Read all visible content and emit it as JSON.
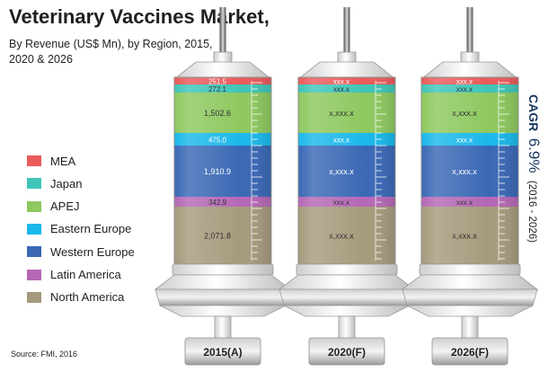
{
  "title": "Veterinary Vaccines Market,",
  "subtitle": "By Revenue (US$ Mn), by Region, 2015, 2020 & 2026",
  "source": "Source: FMI, 2016",
  "cagr": {
    "prefix": "CAGR",
    "value": "6.9%",
    "period": "(2016 - 2026)",
    "color": "#17365d"
  },
  "chart_data": {
    "type": "bar",
    "stacked": true,
    "categories": [
      "2015(A)",
      "2020(F)",
      "2026(F)"
    ],
    "series": [
      {
        "name": "North America",
        "color": "#a69a7c",
        "values": [
          2071.8,
          null,
          null
        ],
        "labels": [
          "2,071.8",
          "x,xxx.x",
          "x,xxx.x"
        ]
      },
      {
        "name": "Latin America",
        "color": "#b567b5",
        "values": [
          342.9,
          null,
          null
        ],
        "labels": [
          "342.9",
          "xxx.x",
          "xxx.x"
        ]
      },
      {
        "name": "Western Europe",
        "color": "#3a68b5",
        "values": [
          1910.9,
          null,
          null
        ],
        "labels": [
          "1,910.9",
          "x,xxx.x",
          "x,xxx.x"
        ]
      },
      {
        "name": "Eastern Europe",
        "color": "#1ab8ea",
        "values": [
          475.0,
          null,
          null
        ],
        "labels": [
          "475.0",
          "xxx.x",
          "xxx.x"
        ]
      },
      {
        "name": "APEJ",
        "color": "#8ec85f",
        "values": [
          1502.6,
          null,
          null
        ],
        "labels": [
          "1,502.6",
          "x,xxx.x",
          "x,xxx.x"
        ]
      },
      {
        "name": "Japan",
        "color": "#3fc5b7",
        "values": [
          272.1,
          null,
          null
        ],
        "labels": [
          "272.1",
          "xxx.x",
          "xxx.x"
        ]
      },
      {
        "name": "MEA",
        "color": "#ea5a5a",
        "values": [
          251.5,
          null,
          null
        ],
        "labels": [
          "251.5",
          "xxx.x",
          "xxx.x"
        ]
      }
    ],
    "legend_order": [
      "MEA",
      "Japan",
      "APEJ",
      "Eastern Europe",
      "Western Europe",
      "Latin America",
      "North America"
    ],
    "legend_position": "left",
    "grid": false
  }
}
